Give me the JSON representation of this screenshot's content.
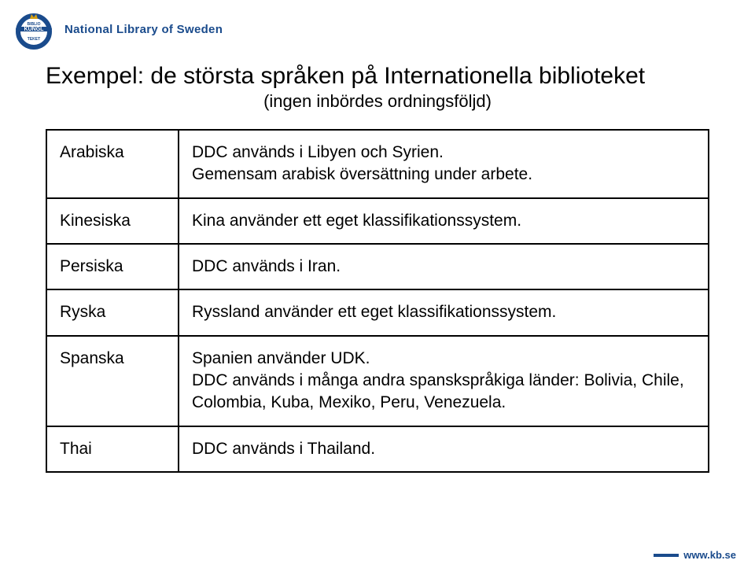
{
  "header": {
    "org_name": "National Library of Sweden",
    "logo": {
      "banner_text": "KUNGL",
      "ring_text_top": "BIBLIO",
      "ring_text_bottom": "TEKET",
      "crown_color": "#d4a017",
      "ring_color": "#1a4b8c",
      "banner_color": "#1a4b8c"
    }
  },
  "title": "Exempel: de största språken på Internationella biblioteket",
  "subtitle": "(ingen inbördes ordningsföljd)",
  "rows": [
    {
      "lang": "Arabiska",
      "desc": "DDC används i Libyen och Syrien.\nGemensam arabisk översättning under arbete."
    },
    {
      "lang": "Kinesiska",
      "desc": "Kina använder ett eget klassifikationssystem."
    },
    {
      "lang": "Persiska",
      "desc": "DDC används i Iran."
    },
    {
      "lang": "Ryska",
      "desc": "Ryssland använder ett eget klassifikationssystem."
    },
    {
      "lang": "Spanska",
      "desc": "Spanien använder UDK.\nDDC används i många andra spanskspråkiga länder: Bolivia, Chile, Colombia, Kuba, Mexiko, Peru, Venezuela."
    },
    {
      "lang": "Thai",
      "desc": "DDC används i Thailand."
    }
  ],
  "footer": {
    "url": "www.kb.se",
    "bar_color": "#1a4b8c",
    "text_color": "#1a4b8c"
  },
  "colors": {
    "brand_blue": "#1a4b8c",
    "text": "#000000",
    "background": "#ffffff",
    "border": "#000000"
  }
}
